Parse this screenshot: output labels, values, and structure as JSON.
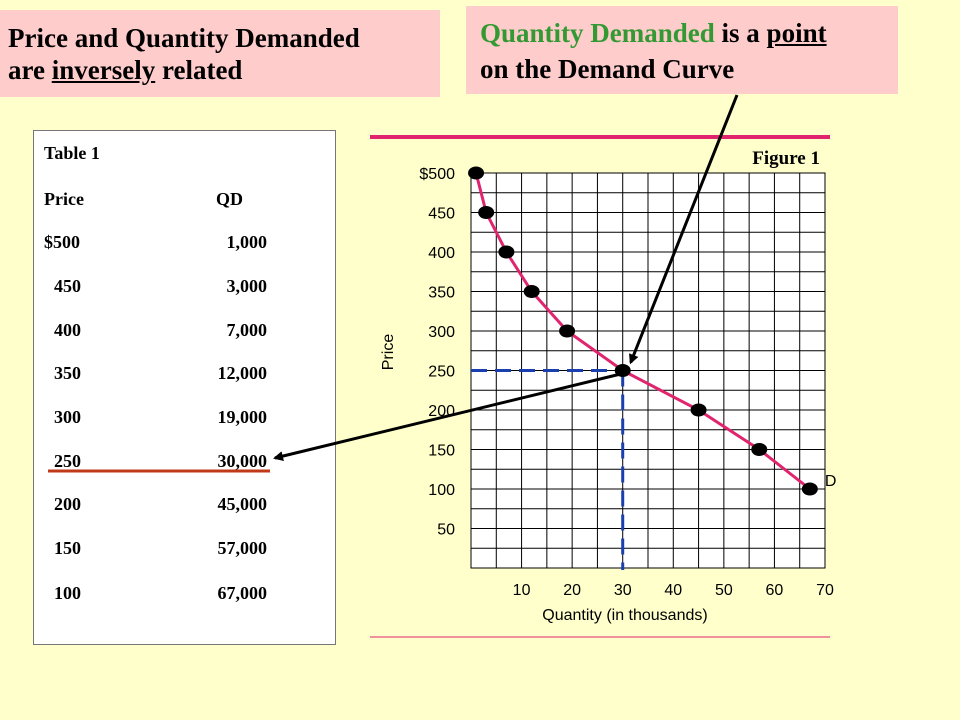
{
  "callouts": {
    "left": {
      "line1": "Price and Quantity Demanded",
      "line2_a": "are ",
      "line2_b": "inversely",
      "line2_c": " related"
    },
    "right": {
      "line1_a": "Quantity Demanded",
      "line1_b": " is a ",
      "line1_c": "point",
      "line2": "on the Demand Curve"
    }
  },
  "colors": {
    "background": "#ffffcc",
    "callout_bg": "#ffcccc",
    "green_text": "#339933",
    "curve": "#e0246e",
    "guide": "#1a3fb0",
    "highlight_line": "#c0391b"
  },
  "table": {
    "title": "Table 1",
    "headers": [
      "Price",
      "QD"
    ],
    "rows": [
      [
        "$500",
        "1,000"
      ],
      [
        "450",
        "3,000"
      ],
      [
        "400",
        "7,000"
      ],
      [
        "350",
        "12,000"
      ],
      [
        "300",
        "19,000"
      ],
      [
        "250",
        "30,000"
      ],
      [
        "200",
        "45,000"
      ],
      [
        "150",
        "57,000"
      ],
      [
        "100",
        "67,000"
      ]
    ],
    "highlighted_row": 5
  },
  "chart_data": {
    "type": "line",
    "title": "Figure 1",
    "xlabel": "Quantity (in thousands)",
    "ylabel": "Price",
    "xlim": [
      0,
      70
    ],
    "ylim": [
      0,
      500
    ],
    "x_ticks": [
      "10",
      "20",
      "30",
      "40",
      "50",
      "60",
      "70"
    ],
    "y_ticks": [
      "$500",
      "450",
      "400",
      "350",
      "300",
      "250",
      "200",
      "150",
      "100",
      "50"
    ],
    "grid": true,
    "series": [
      {
        "name": "D",
        "x": [
          1,
          3,
          7,
          12,
          19,
          30,
          45,
          57,
          67
        ],
        "y": [
          500,
          450,
          400,
          350,
          300,
          250,
          200,
          150,
          100
        ]
      }
    ],
    "highlight_point": {
      "x": 30,
      "y": 250
    }
  }
}
